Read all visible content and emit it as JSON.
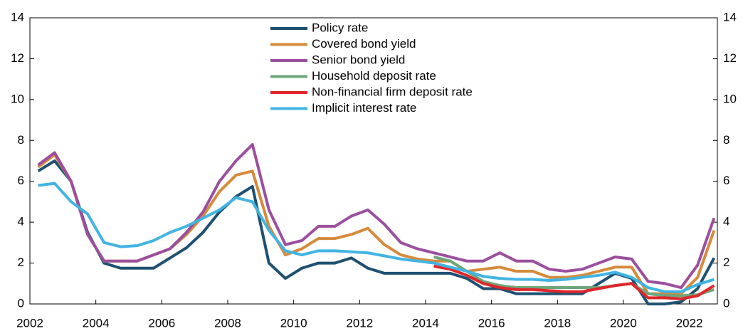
{
  "chart_data": {
    "type": "line",
    "x": [
      2002.25,
      2002.75,
      2003.25,
      2003.75,
      2004.25,
      2004.75,
      2005.25,
      2005.75,
      2006.25,
      2006.75,
      2007.25,
      2007.75,
      2008.25,
      2008.75,
      2009.25,
      2009.75,
      2010.25,
      2010.75,
      2011.25,
      2011.75,
      2012.25,
      2012.75,
      2013.25,
      2013.75,
      2014.25,
      2014.75,
      2015.25,
      2015.75,
      2016.25,
      2016.75,
      2017.25,
      2017.75,
      2018.25,
      2018.75,
      2019.25,
      2019.75,
      2020.25,
      2020.75,
      2021.25,
      2021.75,
      2022.25,
      2022.75
    ],
    "series": [
      {
        "name": "Policy rate",
        "color": "#1f5070",
        "values": [
          6.5,
          7.0,
          6.0,
          3.5,
          2.0,
          1.75,
          1.75,
          1.75,
          2.25,
          2.75,
          3.5,
          4.5,
          5.25,
          5.75,
          2.0,
          1.25,
          1.75,
          2.0,
          2.0,
          2.25,
          1.75,
          1.5,
          1.5,
          1.5,
          1.5,
          1.5,
          1.25,
          0.75,
          0.75,
          0.5,
          0.5,
          0.5,
          0.5,
          0.5,
          1.0,
          1.5,
          1.25,
          0,
          0,
          0.1,
          0.75,
          2.25
        ]
      },
      {
        "name": "Covered bond yield",
        "color": "#d58b3c",
        "values": [
          6.7,
          7.3,
          6.0,
          3.4,
          2.1,
          2.1,
          2.1,
          2.4,
          2.7,
          3.4,
          4.3,
          5.5,
          6.3,
          6.5,
          3.8,
          2.4,
          2.7,
          3.2,
          3.2,
          3.4,
          3.7,
          2.9,
          2.4,
          2.2,
          2.1,
          2.1,
          1.6,
          1.7,
          1.8,
          1.6,
          1.6,
          1.3,
          1.3,
          1.4,
          1.6,
          1.8,
          1.8,
          0.5,
          0.5,
          0.5,
          1.3,
          3.6
        ]
      },
      {
        "name": "Senior bond yield",
        "color": "#9b4f9e",
        "values": [
          6.8,
          7.4,
          6.0,
          3.4,
          2.1,
          2.1,
          2.1,
          2.4,
          2.7,
          3.5,
          4.5,
          6.0,
          7.0,
          7.8,
          4.6,
          2.9,
          3.1,
          3.8,
          3.8,
          4.3,
          4.6,
          3.9,
          3.0,
          2.7,
          2.5,
          2.3,
          2.1,
          2.1,
          2.5,
          2.1,
          2.1,
          1.7,
          1.6,
          1.7,
          2.0,
          2.3,
          2.2,
          1.1,
          1.0,
          0.8,
          1.9,
          4.2
        ]
      },
      {
        "name": "Household deposit rate",
        "color": "#6fa57a",
        "values": [
          null,
          null,
          null,
          null,
          null,
          null,
          null,
          null,
          null,
          null,
          null,
          null,
          null,
          null,
          null,
          null,
          null,
          null,
          null,
          null,
          null,
          null,
          null,
          null,
          2.3,
          2.1,
          1.6,
          1.1,
          0.9,
          0.8,
          0.8,
          0.8,
          0.8,
          0.8,
          0.8,
          0.9,
          1.0,
          0.5,
          0.4,
          0.4,
          0.45,
          0.7
        ]
      },
      {
        "name": "Non-financial firm deposit rate",
        "color": "#e0262b",
        "values": [
          null,
          null,
          null,
          null,
          null,
          null,
          null,
          null,
          null,
          null,
          null,
          null,
          null,
          null,
          null,
          null,
          null,
          null,
          null,
          null,
          null,
          null,
          null,
          null,
          1.85,
          1.7,
          1.4,
          1.0,
          0.8,
          0.7,
          0.7,
          0.65,
          0.6,
          0.6,
          0.75,
          0.9,
          1.0,
          0.3,
          0.3,
          0.25,
          0.4,
          0.9
        ]
      },
      {
        "name": "Implicit interest rate",
        "color": "#42b4e3",
        "values": [
          5.8,
          5.9,
          5.0,
          4.4,
          3.0,
          2.8,
          2.85,
          3.1,
          3.5,
          3.8,
          4.2,
          4.6,
          5.2,
          5.0,
          3.6,
          2.6,
          2.4,
          2.6,
          2.6,
          2.55,
          2.5,
          2.35,
          2.2,
          2.1,
          2.0,
          1.8,
          1.6,
          1.35,
          1.25,
          1.2,
          1.2,
          1.15,
          1.2,
          1.3,
          1.4,
          1.55,
          1.3,
          0.8,
          0.6,
          0.6,
          0.95,
          1.2
        ]
      }
    ],
    "xlim": [
      2002,
      2022.85
    ],
    "xticks": [
      2002,
      2004,
      2006,
      2008,
      2010,
      2012,
      2014,
      2016,
      2018,
      2020,
      2022
    ],
    "ylim": [
      0,
      14
    ],
    "yticks": [
      0,
      2,
      4,
      6,
      8,
      10,
      12,
      14
    ],
    "y2lim": [
      0,
      14
    ],
    "y2ticks": [
      0,
      2,
      4,
      6,
      8,
      10,
      12,
      14
    ],
    "legend": "top-center"
  }
}
